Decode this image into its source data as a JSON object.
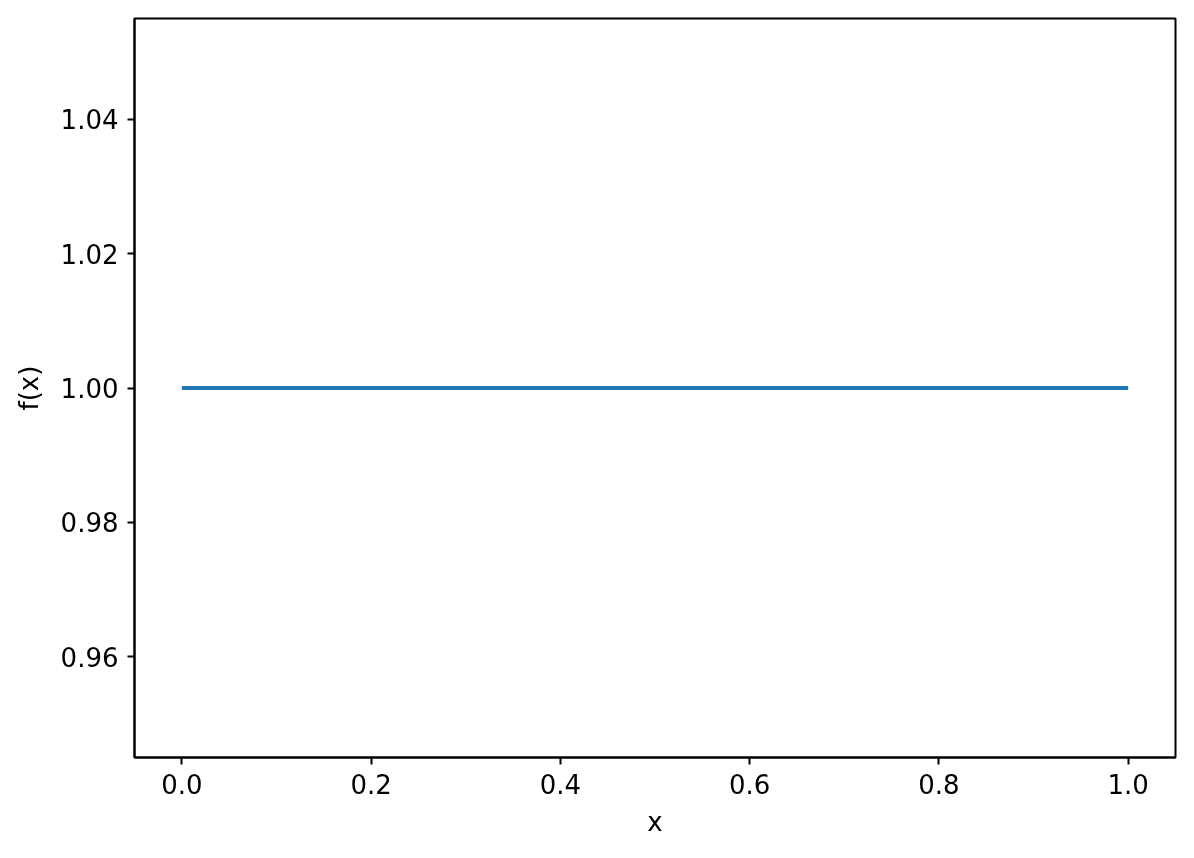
{
  "chart_data": {
    "type": "line",
    "xlabel": "x",
    "ylabel": "f(x)",
    "x": [
      0,
      1
    ],
    "values": [
      1,
      1
    ],
    "color": "#1f77b4",
    "xlim": [
      -0.05,
      1.05
    ],
    "ylim": [
      0.945,
      1.055
    ],
    "xticks": [
      {
        "value": 0,
        "label": "0.0"
      },
      0.2,
      0.4,
      0.6,
      0.8,
      {
        "value": 1,
        "label": "1.0"
      }
    ],
    "yticks": [
      0.96,
      0.98,
      {
        "value": 1,
        "label": "1.00"
      },
      1.02,
      1.04
    ]
  }
}
